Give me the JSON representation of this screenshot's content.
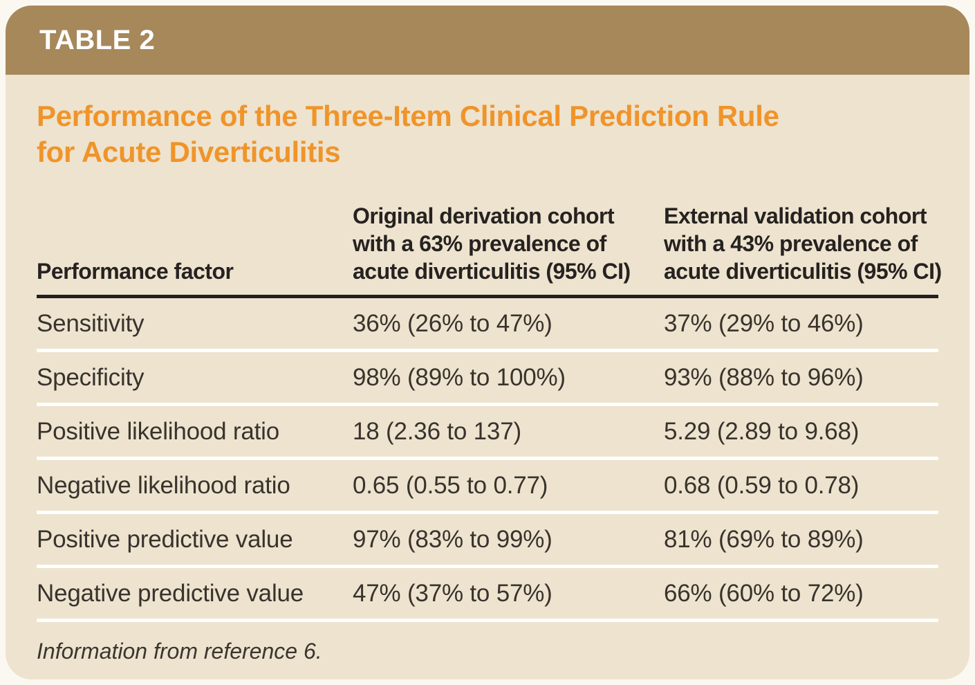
{
  "table_label": "TABLE 2",
  "title": {
    "line1": "Performance of the Three-Item Clinical Prediction Rule",
    "line2": "for Acute Diverticulitis"
  },
  "columns": {
    "factor": {
      "label": "Performance factor"
    },
    "derivation": {
      "lines": [
        "Original derivation cohort",
        "with a 63% prevalence of",
        "acute diverticulitis (95% CI)"
      ]
    },
    "validation": {
      "lines": [
        "External validation cohort",
        "with a 43% prevalence of",
        "acute diverticulitis (95% CI)"
      ]
    }
  },
  "rows": [
    {
      "factor": "Sensitivity",
      "derivation": "36% (26% to 47%)",
      "validation": "37% (29% to 46%)"
    },
    {
      "factor": "Specificity",
      "derivation": "98% (89% to 100%)",
      "validation": "93% (88% to 96%)"
    },
    {
      "factor": "Positive likelihood ratio",
      "derivation": "18 (2.36 to 137)",
      "validation": "5.29 (2.89 to 9.68)"
    },
    {
      "factor": "Negative likelihood ratio",
      "derivation": "0.65 (0.55 to 0.77)",
      "validation": "0.68 (0.59 to 0.78)"
    },
    {
      "factor": "Positive predictive value",
      "derivation": "97% (83% to 99%)",
      "validation": "81% (69% to 89%)"
    },
    {
      "factor": "Negative predictive value",
      "derivation": "47% (37% to 57%)",
      "validation": "66% (60% to 72%)"
    }
  ],
  "footnote": "Information from reference 6.",
  "colors": {
    "header_bar": "#A6885A",
    "panel_background": "#EDE3CF",
    "title_orange": "#F0942A",
    "header_rule": "#231F20",
    "row_separator": "#FFFFFF",
    "text_dark": "#38332C",
    "label_white": "#FFFFFF"
  },
  "chart_data": {
    "type": "table",
    "title": "Performance of the Three-Item Clinical Prediction Rule for Acute Diverticulitis",
    "columns": [
      "Performance factor",
      "Original derivation cohort with a 63% prevalence of acute diverticulitis (95% CI)",
      "External validation cohort with a 43% prevalence of acute diverticulitis (95% CI)"
    ],
    "rows": [
      [
        "Sensitivity",
        "36% (26% to 47%)",
        "37% (29% to 46%)"
      ],
      [
        "Specificity",
        "98% (89% to 100%)",
        "93% (88% to 96%)"
      ],
      [
        "Positive likelihood ratio",
        "18 (2.36 to 137)",
        "5.29 (2.89 to 9.68)"
      ],
      [
        "Negative likelihood ratio",
        "0.65 (0.55 to 0.77)",
        "0.68 (0.59 to 0.78)"
      ],
      [
        "Positive predictive value",
        "97% (83% to 99%)",
        "81% (69% to 89%)"
      ],
      [
        "Negative predictive value",
        "47% (37% to 57%)",
        "66% (60% to 72%)"
      ]
    ],
    "footnote": "Information from reference 6."
  }
}
